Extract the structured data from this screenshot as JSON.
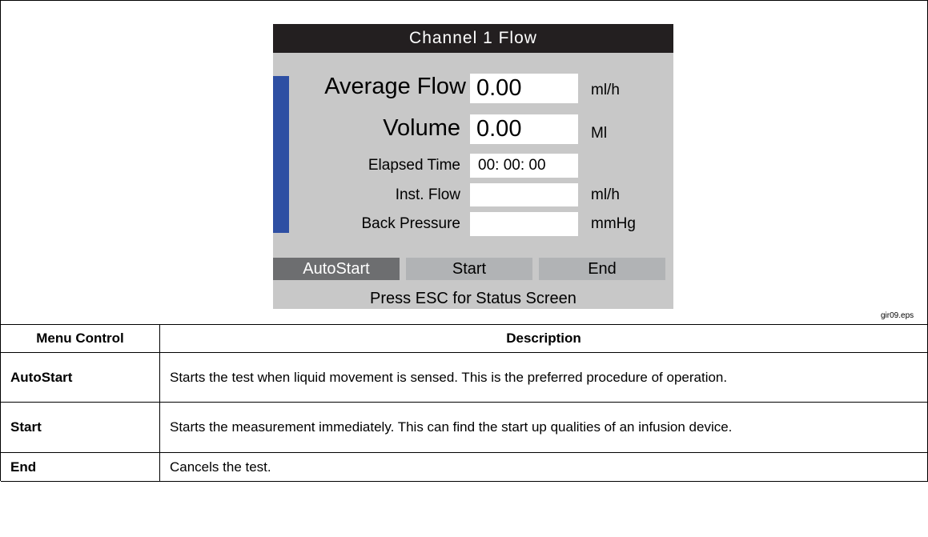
{
  "screen": {
    "title": "Channel 1 Flow",
    "fields": [
      {
        "label": "Average Flow",
        "value": "0.00",
        "unit": "ml/h"
      },
      {
        "label": "Volume",
        "value": "0.00",
        "unit": "Ml"
      },
      {
        "label": "Elapsed Time",
        "value": "00: 00: 00"
      },
      {
        "label": "Inst. Flow",
        "unit": "ml/h"
      },
      {
        "label": "Back Pressure",
        "unit": "mmHg"
      }
    ],
    "buttons": [
      "AutoStart",
      "Start",
      "End"
    ],
    "footer": "Press ESC for Status Screen"
  },
  "figure_label": "gir09.eps",
  "table": {
    "header": [
      "Menu Control",
      "Description"
    ],
    "rows": [
      [
        "AutoStart",
        "Starts the test when liquid movement is sensed. This is the preferred procedure of operation."
      ],
      [
        "Start",
        "Starts the measurement immediately. This can find the start up qualities of an infusion device."
      ],
      [
        "End",
        "Cancels the test."
      ]
    ]
  }
}
